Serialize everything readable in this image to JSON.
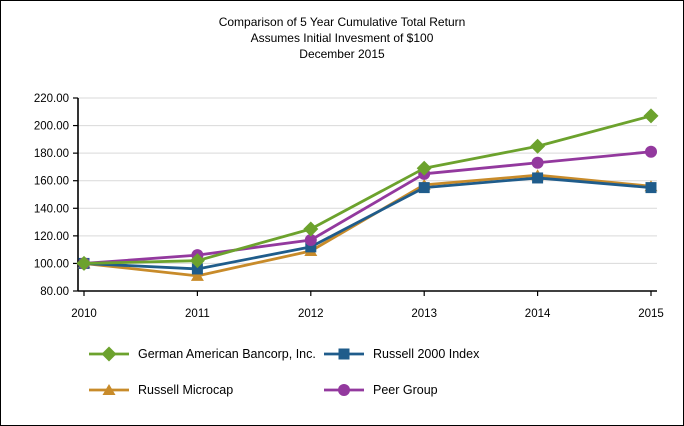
{
  "chart_data": {
    "type": "line",
    "title": "Comparison of 5 Year Cumulative Total Return",
    "subtitle": "Assumes Initial Invesment of $100",
    "period_label": "December 2015",
    "categories": [
      "2010",
      "2011",
      "2012",
      "2013",
      "2014",
      "2015"
    ],
    "series": [
      {
        "name": "German American Bancorp, Inc.",
        "marker": "diamond",
        "color": "#6CA22D",
        "values": [
          100.0,
          102.0,
          125.0,
          169.0,
          185.0,
          207.0
        ]
      },
      {
        "name": "Russell 2000 Index",
        "marker": "square",
        "color": "#1F5C8B",
        "values": [
          100.0,
          96.0,
          112.0,
          155.0,
          162.0,
          155.0
        ]
      },
      {
        "name": "Russell Microcap",
        "marker": "triangle",
        "color": "#C88B2A",
        "values": [
          100.0,
          91.0,
          109.0,
          157.0,
          164.0,
          156.0
        ]
      },
      {
        "name": "Peer Group",
        "marker": "circle",
        "color": "#93399E",
        "values": [
          100.0,
          106.0,
          117.0,
          165.0,
          173.0,
          181.0
        ]
      }
    ],
    "ylim": [
      80,
      220
    ],
    "ytick_step": 20,
    "ytick_labels": [
      "80.00",
      "100.00",
      "120.00",
      "140.00",
      "160.00",
      "180.00",
      "200.00",
      "220.00"
    ],
    "xtick_labels": [
      "2010",
      "2011",
      "2012",
      "2013",
      "2014",
      "2015"
    ],
    "grid": "horizontal-only",
    "gridline_color": "#D9D9D9",
    "axis_color": "#000000",
    "legend_position": "bottom"
  }
}
